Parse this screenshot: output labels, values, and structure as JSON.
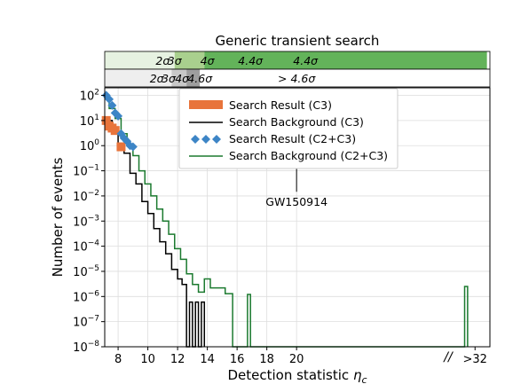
{
  "chart_data": {
    "type": "line",
    "title": "Generic transient search",
    "xlabel": "Detection statistic ηc",
    "xlabel_base": "Detection statistic ",
    "xlabel_symbol": "η",
    "xlabel_sub": "c",
    "ylabel": "Number of events",
    "xlim": [
      7.1,
      33
    ],
    "ylim": [
      1e-08,
      200
    ],
    "yscale": "log",
    "grid": true,
    "legend_position": "top-center",
    "x_ticks": [
      "8",
      "10",
      "12",
      "14",
      "16",
      "18",
      "20",
      ">32"
    ],
    "y_tick_exponents": [
      -8,
      -7,
      -6,
      -5,
      -4,
      -3,
      -2,
      -1,
      0,
      1,
      2
    ],
    "axis_break_marker": "//",
    "colors": {
      "c3_result": "#e8743b",
      "c3_background": "#000000",
      "c2c3_result": "#3d85c6",
      "c2c3_background": "#1b7a2f",
      "band_top": [
        "#e6f2e1",
        "#a9d08e",
        "#63b35a",
        "#4caf50"
      ],
      "band_bottom": [
        "#eeeeee",
        "#c8c8c8",
        "#9e9e9e",
        "#ffffff"
      ]
    },
    "significance_bands": {
      "c2c3": [
        {
          "label": "2σ",
          "x": 11.0
        },
        {
          "label": "3σ",
          "x": 11.8
        },
        {
          "label": "4σ",
          "x": 14.0
        },
        {
          "label": "4.4σ",
          "x": 16.9
        },
        {
          "label": "4.4σ",
          "x": 20.6
        }
      ],
      "c3": [
        {
          "label": "2σ",
          "x": 10.6
        },
        {
          "label": "3σ",
          "x": 11.4
        },
        {
          "label": "4σ",
          "x": 12.3
        },
        {
          "label": "4.6σ",
          "x": 13.5
        },
        {
          "label": "> 4.6σ",
          "x": 20.0
        }
      ]
    },
    "series": [
      {
        "name": "Search Result (C3)",
        "type": "scatter",
        "marker": "square",
        "x": [
          7.2,
          7.4,
          7.6,
          7.8,
          8.2
        ],
        "y": [
          10,
          6,
          5,
          4,
          0.9
        ]
      },
      {
        "name": "Search Background (C3)",
        "type": "step",
        "x": [
          7.1,
          7.6,
          8.0,
          8.4,
          8.8,
          9.2,
          9.6,
          10.0,
          10.4,
          10.8,
          11.2,
          11.6,
          12.0,
          12.3,
          12.6,
          12.8,
          13.0,
          13.2,
          13.4,
          13.6,
          13.8
        ],
        "y": [
          10,
          3,
          1,
          0.5,
          0.08,
          0.03,
          0.006,
          0.002,
          0.0005,
          0.00015,
          5e-05,
          1.2e-05,
          5e-06,
          3e-06,
          1e-08,
          6e-07,
          1e-08,
          6e-07,
          1e-08,
          6e-07,
          1e-08
        ]
      },
      {
        "name": "Search Result (C2+C3)",
        "type": "scatter",
        "marker": "diamond",
        "x": [
          7.2,
          7.4,
          7.6,
          7.8,
          8.0,
          8.2,
          8.4,
          8.6,
          8.8,
          9.0
        ],
        "y": [
          100,
          70,
          40,
          20,
          15,
          3,
          2,
          1.5,
          1,
          0.9
        ]
      },
      {
        "name": "Search Background (C2+C3)",
        "type": "step",
        "x": [
          7.1,
          7.4,
          7.8,
          8.2,
          8.6,
          9.0,
          9.4,
          9.8,
          10.2,
          10.6,
          11.0,
          11.4,
          11.8,
          12.2,
          12.6,
          13.0,
          13.4,
          13.8,
          14.2,
          15.2,
          15.5,
          15.7,
          16.5,
          16.7,
          16.9,
          31.0,
          31.3,
          31.5
        ],
        "y": [
          100,
          30,
          12,
          3,
          1,
          0.4,
          0.1,
          0.03,
          0.01,
          0.003,
          0.001,
          0.0003,
          8e-05,
          3e-05,
          8e-06,
          3e-06,
          1.5e-06,
          5e-06,
          2.2e-06,
          1.3e-06,
          1.3e-06,
          1e-08,
          1e-08,
          1.2e-06,
          1e-08,
          1e-08,
          2.5e-06,
          1e-08
        ]
      }
    ],
    "annotations": [
      {
        "text": "GW150914",
        "x": 20.0,
        "y": 1.0,
        "arrow": true
      }
    ]
  }
}
